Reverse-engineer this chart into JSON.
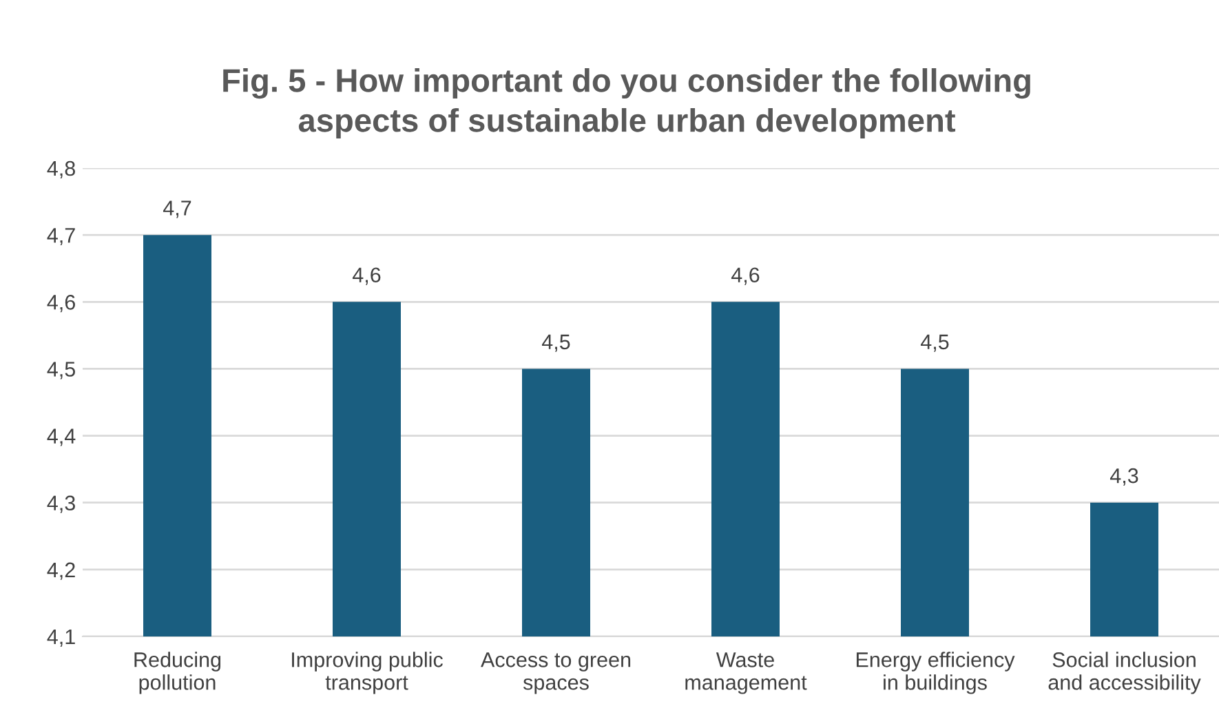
{
  "chart_data": {
    "type": "bar",
    "title": "Fig. 5 - How important do you consider the following\naspects of sustainable urban development",
    "categories": [
      "Reducing\npollution",
      "Improving public\ntransport",
      "Access to green\nspaces",
      "Waste\nmanagement",
      "Energy efficiency\nin buildings",
      "Social inclusion\nand accessibility"
    ],
    "values": [
      4.7,
      4.6,
      4.5,
      4.6,
      4.5,
      4.3
    ],
    "value_labels": [
      "4,7",
      "4,6",
      "4,5",
      "4,6",
      "4,5",
      "4,3"
    ],
    "color": "#1a5e80",
    "ylim": [
      4.1,
      4.8
    ],
    "yticks": [
      {
        "value": 4.1,
        "label": "4,1"
      },
      {
        "value": 4.2,
        "label": "4,2"
      },
      {
        "value": 4.3,
        "label": "4,3"
      },
      {
        "value": 4.4,
        "label": "4,4"
      },
      {
        "value": 4.5,
        "label": "4,5"
      },
      {
        "value": 4.6,
        "label": "4,6"
      },
      {
        "value": 4.7,
        "label": "4,7"
      },
      {
        "value": 4.8,
        "label": "4,8"
      }
    ],
    "grid": "y"
  }
}
